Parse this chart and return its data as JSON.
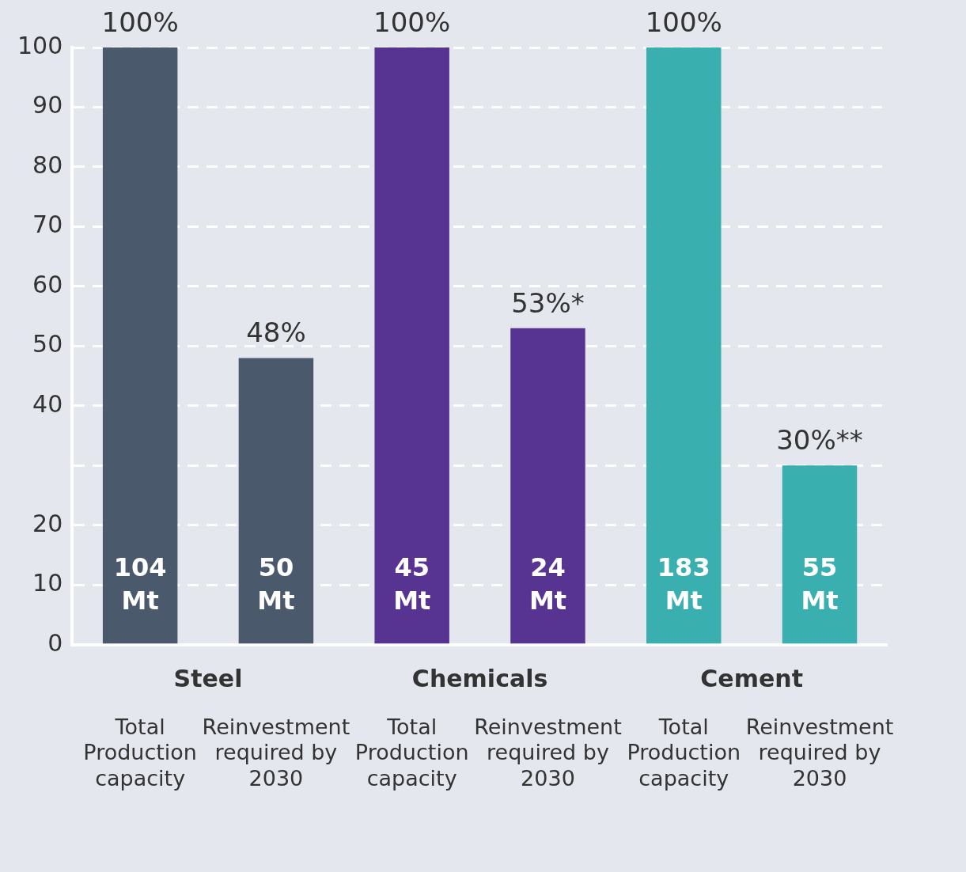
{
  "chart_data": {
    "type": "bar",
    "categories": [
      "Total Production capacity",
      "Reinvestment required by 2030",
      "Total Production capacity",
      "Reinvestment required by 2030",
      "Total Production capacity",
      "Reinvestment required by 2030"
    ],
    "values": [
      100,
      48,
      100,
      53,
      100,
      30
    ],
    "colors": [
      "#4b596d",
      "#4b596d",
      "#573392",
      "#573392",
      "#3aafb0",
      "#3aafb0"
    ],
    "value_labels": [
      "100%",
      "48%",
      "100%",
      "53%*",
      "100%",
      "30%**"
    ],
    "annotations": [
      "Steel",
      "Chemicals",
      "Cement",
      "104 Mt",
      "50 Mt",
      "45 Mt",
      "24 Mt",
      "183 Mt",
      "55 Mt"
    ],
    "ylim": [
      0,
      100
    ],
    "yticks": [
      0,
      10,
      20,
      {
        "value": 30,
        "label": null
      },
      40,
      50,
      60,
      70,
      80,
      90,
      100
    ],
    "grid": "y",
    "line_style": "dashed",
    "legend": false
  }
}
